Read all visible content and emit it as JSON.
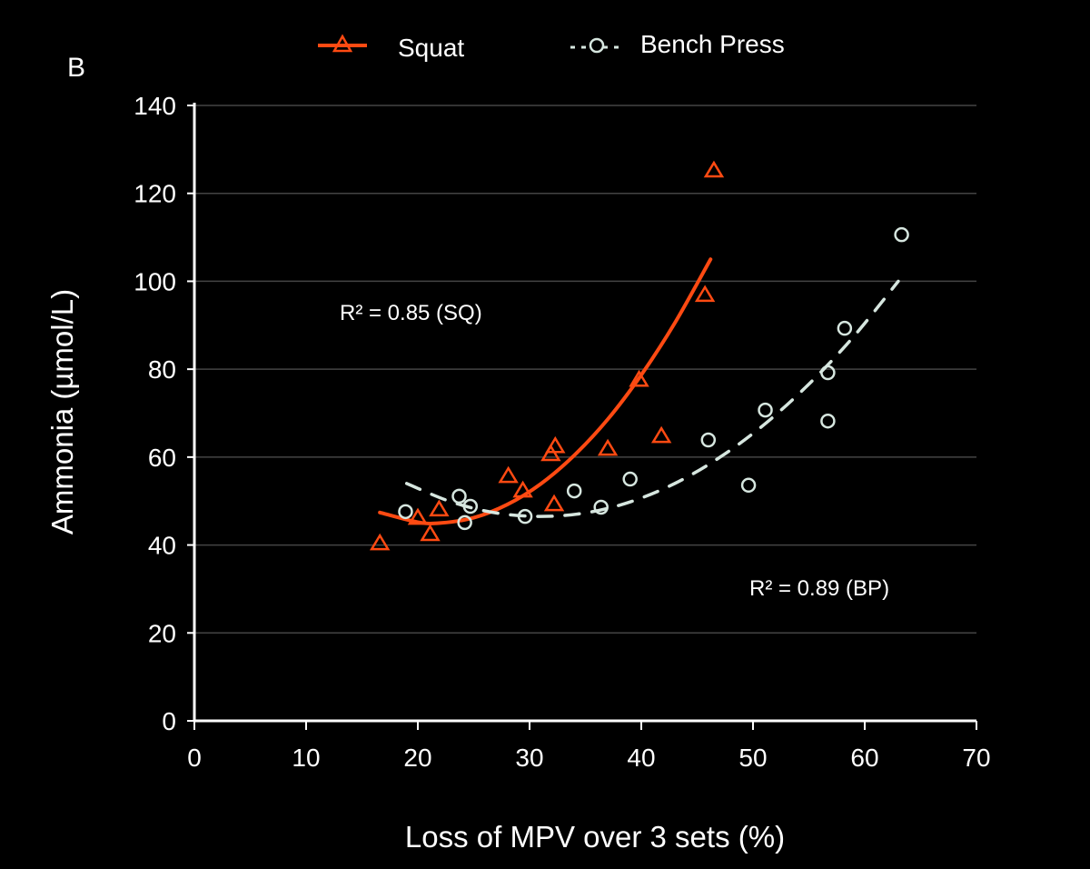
{
  "chart_data": {
    "type": "scatter",
    "panel_label": "B",
    "xlabel": "Loss of MPV over 3 sets (%)",
    "ylabel": "Ammonia  (µmol/L)",
    "xlim": [
      0,
      70
    ],
    "ylim": [
      0,
      140
    ],
    "xticks": [
      "0",
      "10",
      "20",
      "30",
      "40",
      "50",
      "60",
      "70"
    ],
    "yticks": [
      "0",
      "20",
      "40",
      "60",
      "80",
      "100",
      "120",
      "140"
    ],
    "grid": "horizontal",
    "legend_position": "top",
    "colors": {
      "squat": "#ff4a12",
      "bench": "#d6e6df",
      "grid": "#444444"
    },
    "series": [
      {
        "name": "Squat",
        "marker": "triangle-open",
        "line": "solid",
        "points": [
          [
            16.6,
            40.3
          ],
          [
            20.0,
            46.1
          ],
          [
            21.1,
            42.4
          ],
          [
            21.9,
            48.0
          ],
          [
            28.1,
            55.6
          ],
          [
            29.4,
            52.3
          ],
          [
            31.9,
            60.6
          ],
          [
            32.3,
            62.4
          ],
          [
            32.2,
            49.2
          ],
          [
            37.0,
            61.8
          ],
          [
            39.8,
            77.5
          ],
          [
            41.8,
            64.7
          ],
          [
            45.7,
            96.8
          ],
          [
            46.5,
            125.1
          ]
        ],
        "fit": [
          [
            16.6,
            47.4
          ],
          [
            20,
            45.2
          ],
          [
            22,
            45.0
          ],
          [
            25,
            46.2
          ],
          [
            28,
            49.2
          ],
          [
            31,
            53.9
          ],
          [
            34,
            60.4
          ],
          [
            37,
            68.6
          ],
          [
            40,
            78.7
          ],
          [
            43,
            90.5
          ],
          [
            46.2,
            105.0
          ]
        ]
      },
      {
        "name": "Bench Press",
        "marker": "circle-open",
        "line": "dashed",
        "points": [
          [
            18.9,
            47.6
          ],
          [
            23.7,
            51.1
          ],
          [
            24.2,
            45.1
          ],
          [
            24.7,
            48.8
          ],
          [
            29.6,
            46.5
          ],
          [
            34.0,
            52.3
          ],
          [
            36.4,
            48.6
          ],
          [
            39.0,
            55.0
          ],
          [
            46.0,
            63.9
          ],
          [
            49.6,
            53.6
          ],
          [
            51.1,
            70.7
          ],
          [
            56.7,
            79.2
          ],
          [
            56.7,
            68.2
          ],
          [
            58.2,
            89.3
          ],
          [
            63.3,
            110.6
          ]
        ],
        "fit": [
          [
            19,
            54.0
          ],
          [
            23,
            49.8
          ],
          [
            27,
            47.3
          ],
          [
            31,
            46.5
          ],
          [
            35,
            47.3
          ],
          [
            39,
            49.8
          ],
          [
            43,
            54.0
          ],
          [
            47,
            59.9
          ],
          [
            51,
            67.4
          ],
          [
            55,
            76.6
          ],
          [
            59,
            87.4
          ],
          [
            63,
            100.0
          ]
        ]
      }
    ],
    "annotations": [
      "R² = 0.85 (SQ)",
      "R²  = 0.89 (BP)"
    ]
  }
}
